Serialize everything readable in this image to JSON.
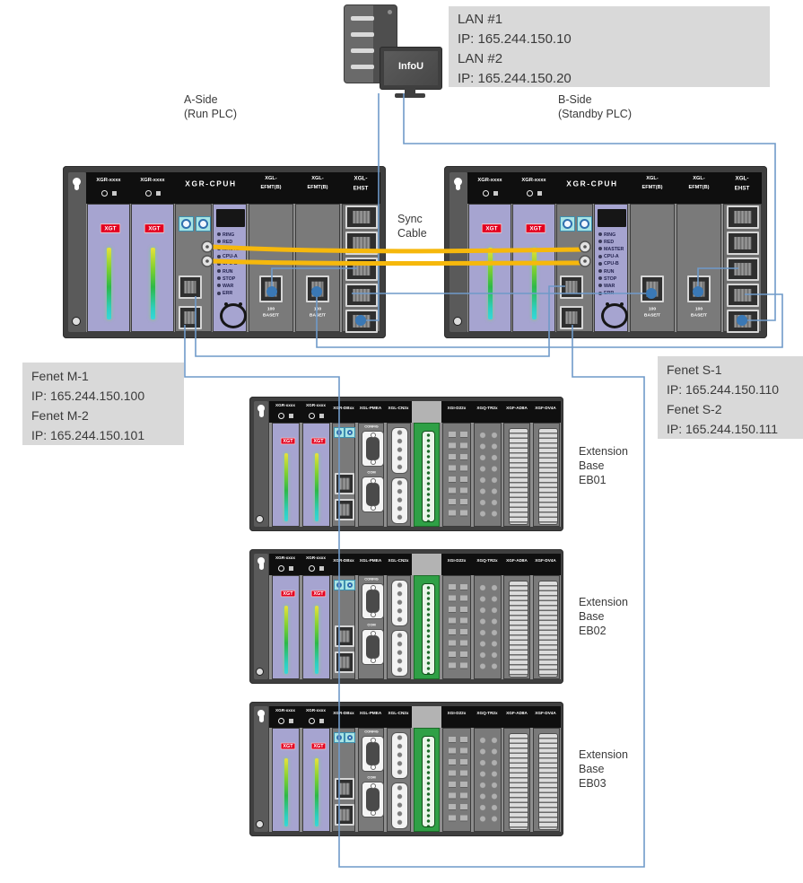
{
  "colors": {
    "wire_blue": "#6f9ac9",
    "dot_blue": "#3a78b5",
    "cable_yellow": "#f6b80c",
    "label_box_bg": "#d9d9d9",
    "text_dark": "#3a3a3a",
    "rack_frame": "#3f3f3f",
    "module_purple": "#a6a4d0",
    "xgt_red": "#e3001f",
    "green_module": "#2fa046"
  },
  "server": {
    "label": "InfoU"
  },
  "lan_box": {
    "lines": [
      "LAN #1",
      "IP: 165.244.150.10",
      "LAN #2",
      "IP: 165.244.150.20"
    ]
  },
  "side_a": {
    "line1": "A-Side",
    "line2": "(Run PLC)"
  },
  "side_b": {
    "line1": "B-Side",
    "line2": "(Standby PLC)"
  },
  "sync_label": {
    "line1": "Sync",
    "line2": "Cable"
  },
  "fenet_m": {
    "lines": [
      "Fenet M-1",
      "IP: 165.244.150.100",
      "Fenet M-2",
      "IP: 165.244.150.101"
    ]
  },
  "fenet_s": {
    "lines": [
      "Fenet S-1",
      "IP: 165.244.150.110",
      "Fenet S-2",
      "IP: 165.244.150.111"
    ]
  },
  "ext_labels": [
    {
      "lines": [
        "Extension",
        "Base",
        "EB01"
      ]
    },
    {
      "lines": [
        "Extension",
        "Base",
        "EB02"
      ]
    },
    {
      "lines": [
        "Extension",
        "Base",
        "EB03"
      ]
    }
  ],
  "main_rack": {
    "psu_header": "XGR-xxxx",
    "cpu_header": "XGR-CPUH",
    "efmt_header_line1": "XGL-",
    "efmt_header_line2": "EFMT(B)",
    "ehst_header_line1": "XGL-",
    "ehst_header_line2": "EHST",
    "psu_badge": "XGT",
    "led_labels": [
      "RING",
      "RED",
      "MASTER",
      "CPU-A",
      "CPU-B",
      "RUN",
      "STOP",
      "WAR",
      "ERR"
    ],
    "port_label_line1": "100",
    "port_label_line2": "BASE/T"
  },
  "extension_rack": {
    "psu_badge": "XGT",
    "headers": [
      "XGR-xxxx",
      "XGR-xxxx",
      "XGR-DBxx",
      "XGL-PMEA",
      "XGL-CN2x",
      "XGI-D22x",
      "XGQ-TR2x",
      "XGF-AD8A",
      "XGF-DV4A"
    ],
    "config_label": "CONFIG",
    "com_label": "COM"
  }
}
